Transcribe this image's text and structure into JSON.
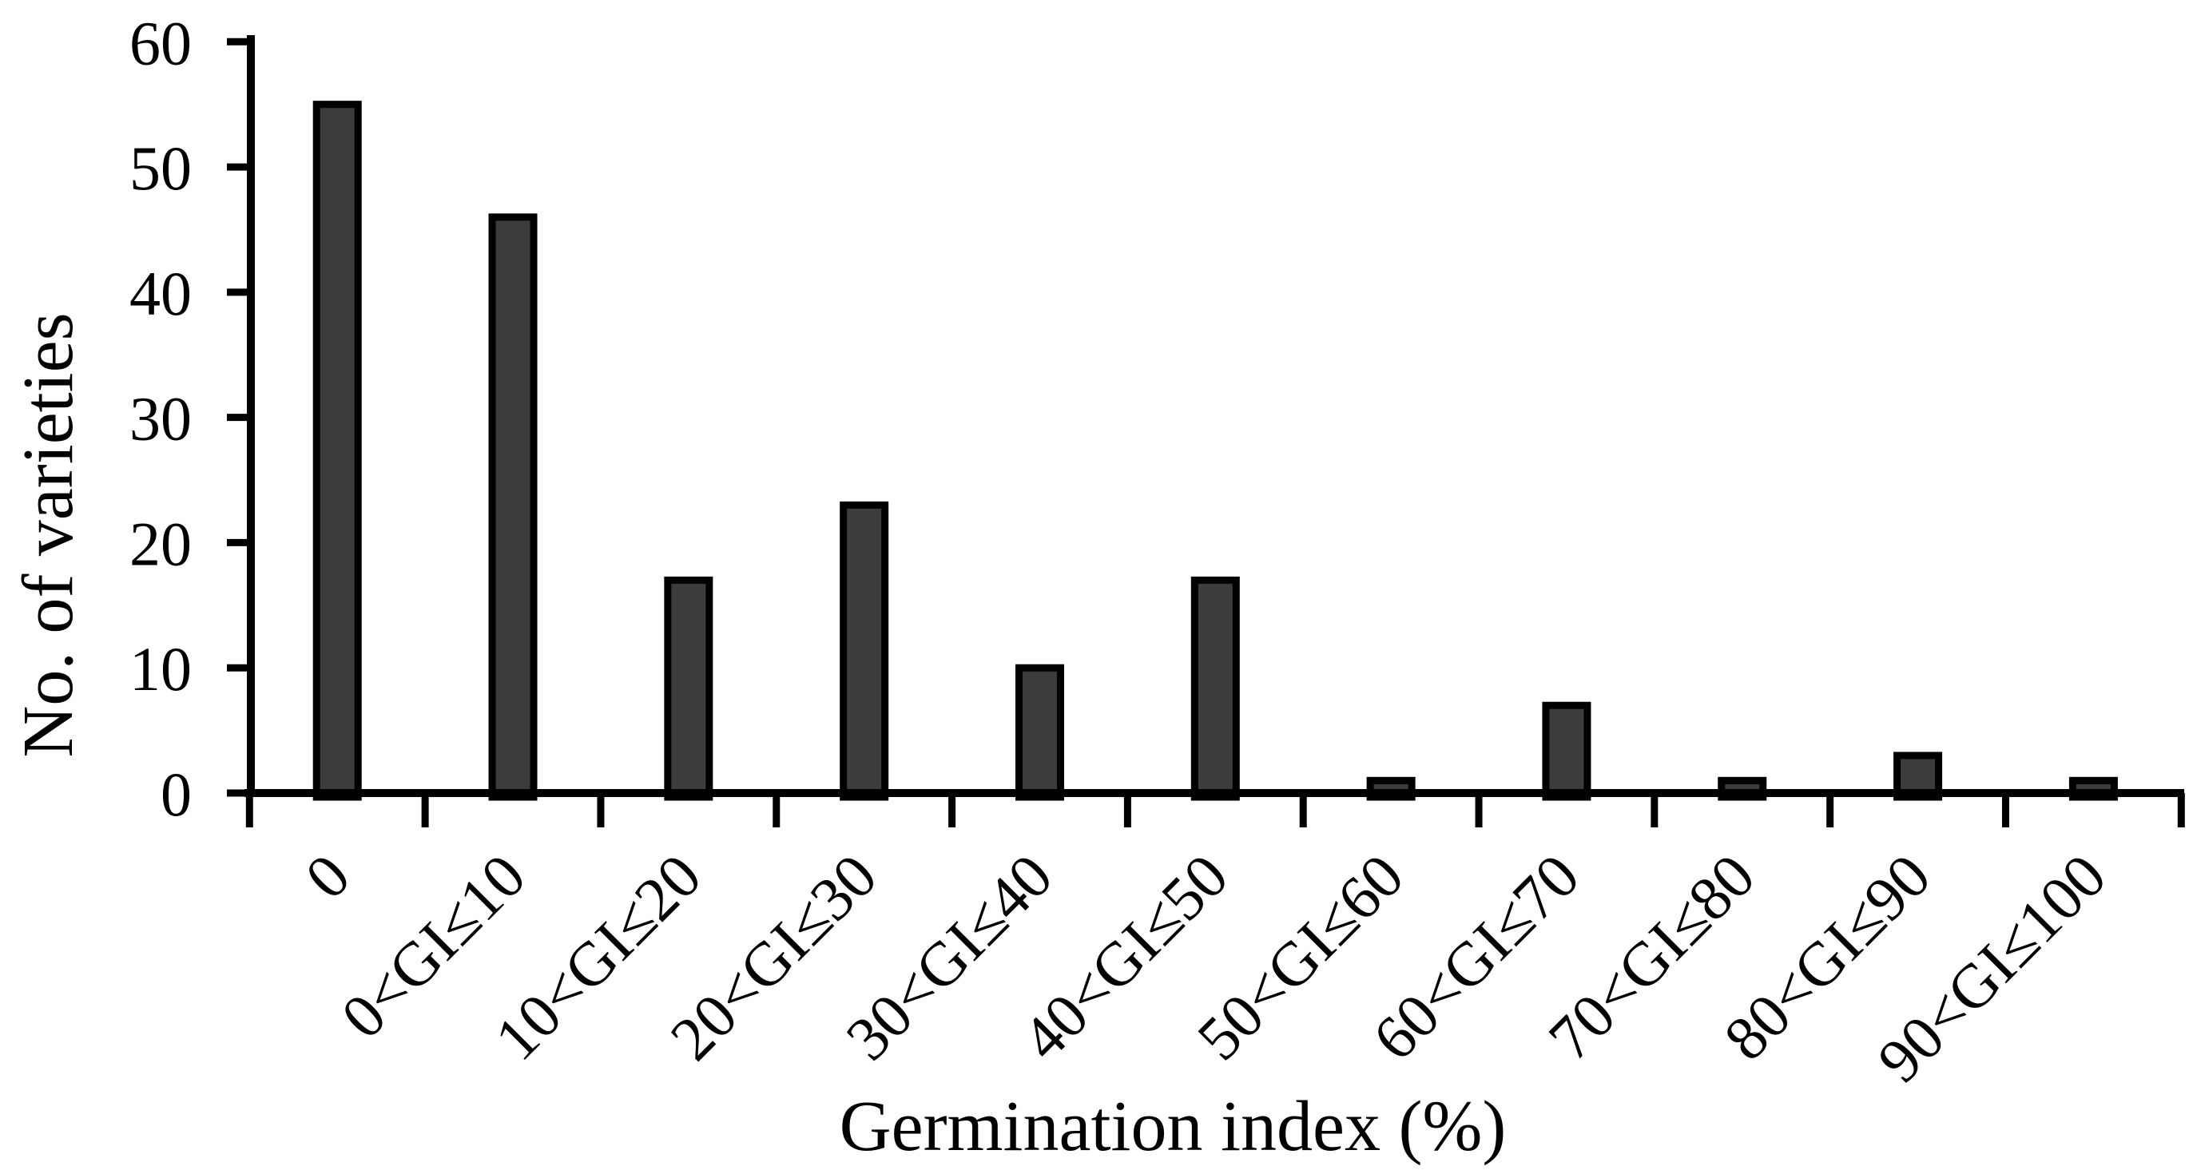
{
  "chart_data": {
    "type": "bar",
    "title": "",
    "xlabel": "Germination index (%)",
    "ylabel": "No. of varieties",
    "categories": [
      "0",
      "0<GI≤10",
      "10<GI≤20",
      "20<GI≤30",
      "30<GI≤40",
      "40<GI≤50",
      "50<GI≤60",
      "60<GI≤70",
      "70<GI≤80",
      "80<GI≤90",
      "90<GI≤100"
    ],
    "values": [
      55,
      46,
      17,
      23,
      10,
      17,
      1,
      7,
      1,
      3,
      1
    ],
    "ylim": [
      0,
      60
    ],
    "yticks": [
      0,
      10,
      20,
      30,
      40,
      50,
      60
    ],
    "grid": false,
    "legend_position": "none",
    "x_label_rotation_deg": -45,
    "bar_fill": "#3c3c3c",
    "bar_stroke": "#000000",
    "axis_color": "#000000",
    "text_color": "#000000",
    "background": "#ffffff"
  }
}
